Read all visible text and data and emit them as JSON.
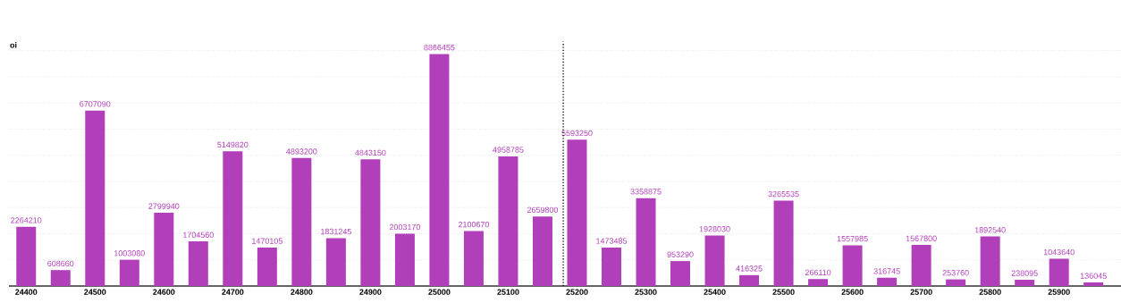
{
  "chart_data": {
    "type": "bar",
    "ylabel": "oi",
    "x": [
      24400,
      24450,
      24500,
      24550,
      24600,
      24650,
      24700,
      24750,
      24800,
      24850,
      24900,
      24950,
      25000,
      25050,
      25100,
      25150,
      25200,
      25250,
      25300,
      25350,
      25400,
      25450,
      25500,
      25550,
      25600,
      25650,
      25700,
      25750,
      25800,
      25850,
      25900,
      25950
    ],
    "values": [
      2264210,
      608660,
      6707090,
      1003080,
      2799940,
      1704560,
      5149820,
      1470105,
      4893200,
      1831245,
      4843150,
      2003170,
      8866455,
      2100670,
      4958785,
      2659800,
      5593250,
      1473485,
      3358875,
      953290,
      1928030,
      416325,
      3265535,
      266110,
      1557985,
      316745,
      1567800,
      253760,
      1892540,
      238095,
      1043640,
      136045
    ],
    "color": "#b13fb9",
    "data_labels": true,
    "xlim": [
      24375,
      25990
    ],
    "xticks": [
      24400,
      24500,
      24600,
      24700,
      24800,
      24900,
      25000,
      25100,
      25200,
      25300,
      25400,
      25500,
      25600,
      25700,
      25800,
      25900
    ],
    "grid": "y",
    "ref_lines": [
      {
        "axis": "x",
        "value": 25180,
        "line_style": "dotted",
        "color": "#000000"
      }
    ]
  }
}
